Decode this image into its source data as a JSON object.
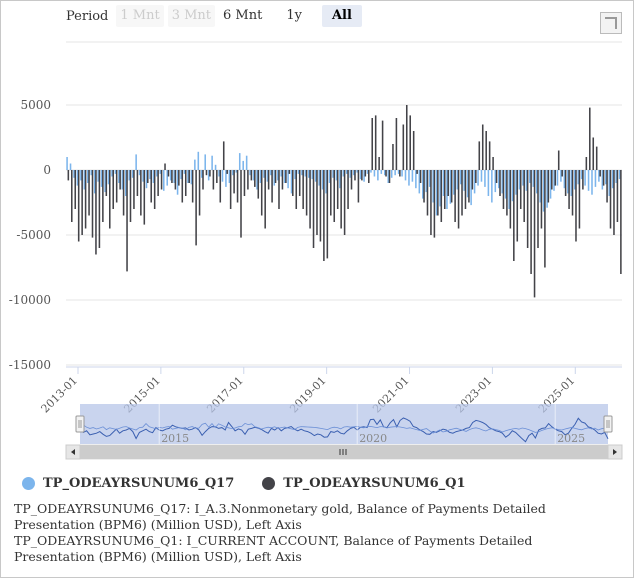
{
  "range_selector": {
    "label": "Period",
    "buttons": [
      "1 Mnt",
      "3 Mnt",
      "6 Mnt",
      "1y",
      "All"
    ],
    "selected": "All"
  },
  "colors": {
    "q17": "#7cb5ec",
    "q1": "#434348",
    "navigator_fill": "#b7c5e8",
    "navigator_line": "#3a5fb0"
  },
  "legend": [
    {
      "name": "TP_ODEAYRSUNUM6_Q17",
      "color": "#7cb5ec"
    },
    {
      "name": "TP_ODEAYRSUNUM6_Q1",
      "color": "#434348"
    }
  ],
  "notes": [
    "TP_ODEAYRSUNUM6_Q17: I_A.3.Nonmonetary gold, Balance of Payments Detailed Presentation (BPM6) (Million USD), Left Axis",
    "TP_ODEAYRSUNUM6_Q1: I_CURRENT ACCOUNT, Balance of Payments Detailed Presentation (BPM6) (Million USD), Left Axis"
  ],
  "chart_data": {
    "type": "bar",
    "title": "",
    "xlabel": "",
    "ylabel": "",
    "ylim": [
      -15000,
      5000
    ],
    "yticks": [
      5000,
      0,
      -5000,
      -10000,
      -15000
    ],
    "xticks": [
      "2013-01",
      "2015-01",
      "2017-01",
      "2019-01",
      "2021-01",
      "2023-01",
      "2025-01"
    ],
    "navigator_ticks": [
      "2015",
      "2020",
      "2025"
    ],
    "start": "2013-01",
    "series": [
      {
        "name": "TP_ODEAYRSUNUM6_Q17",
        "values": [
          1000,
          500,
          -600,
          -1200,
          -800,
          -1500,
          -1000,
          -400,
          -1800,
          -900,
          -1300,
          -1700,
          -1100,
          -500,
          -300,
          -1000,
          -1500,
          -2000,
          -800,
          -600,
          1200,
          -400,
          -900,
          -1400,
          -700,
          -1000,
          -500,
          -300,
          -1600,
          -1200,
          -800,
          -1000,
          -1900,
          -700,
          -300,
          -1000,
          -1100,
          800,
          1400,
          -600,
          1200,
          -800,
          1100,
          400,
          -500,
          -900,
          -1300,
          -1000,
          -400,
          -200,
          1300,
          700,
          1100,
          -400,
          -800,
          -1500,
          -1000,
          -600,
          -900,
          -400,
          -1200,
          -800,
          -500,
          -1000,
          -1400,
          -1800,
          -700,
          -300,
          -400,
          -500,
          -600,
          -700,
          -900,
          -1200,
          -1500,
          -1800,
          -1000,
          -600,
          -800,
          -1400,
          -500,
          -300,
          -600,
          -400,
          -200,
          -700,
          -900,
          -300,
          -200,
          -500,
          -800,
          -300,
          -400,
          -1000,
          -600,
          -400,
          -300,
          -500,
          -800,
          -1200,
          -900,
          -1400,
          -1800,
          -2200,
          -1700,
          -1300,
          -2500,
          -3500,
          -2800,
          -2000,
          -3000,
          -2600,
          -1900,
          -1500,
          -1100,
          -1600,
          -2100,
          -2700,
          -1800,
          -1200,
          -900,
          -1300,
          -2000,
          -2500,
          -1700,
          -1400,
          -1800,
          -2200,
          -3000,
          -2400,
          -1900,
          -1500,
          -1200,
          -1600,
          -1000,
          -1300,
          -1800,
          -2500,
          -3200,
          -2900,
          -2200,
          -1600,
          -1200,
          -900,
          -1400,
          -1800,
          -2000,
          -1500,
          -1100,
          -700,
          -1200,
          -1600,
          -1900,
          -1300,
          -900,
          -1500,
          -1100,
          -2000,
          -1400,
          -1000,
          -700
        ]
      },
      {
        "name": "TP_ODEAYRSUNUM6_Q1",
        "values": [
          -800,
          -4000,
          -3000,
          -5500,
          -5000,
          -4500,
          -3500,
          -5200,
          -6500,
          -6000,
          -4000,
          -2000,
          -4500,
          -3000,
          -2500,
          -1500,
          -3500,
          -7800,
          -4000,
          -3000,
          -2000,
          -3500,
          -4200,
          -1000,
          -2500,
          -3000,
          -2000,
          -1500,
          500,
          -500,
          -1000,
          -1500,
          -1200,
          -2500,
          -2000,
          -1000,
          -2500,
          -5800,
          -3500,
          -1500,
          -400,
          -500,
          -1500,
          -1000,
          -2500,
          2200,
          -300,
          -3000,
          -1800,
          -2500,
          -5200,
          -2000,
          -1500,
          -800,
          -1300,
          -2200,
          -3500,
          -4500,
          -1500,
          -2500,
          -1000,
          -3000,
          -1500,
          -1000,
          -300,
          -2000,
          -3000,
          -2000,
          -3000,
          -3500,
          -4500,
          -6000,
          -5000,
          -5500,
          -7000,
          -6800,
          -3500,
          -4000,
          -3000,
          -4500,
          -5000,
          -3000,
          -1500,
          -800,
          -2500,
          -800,
          -500,
          -1000,
          4000,
          4200,
          1000,
          3800,
          -500,
          -1000,
          2000,
          4000,
          -500,
          3500,
          5000,
          4200,
          3000,
          -300,
          -1000,
          -2500,
          -3500,
          -5000,
          -5200,
          -3500,
          -4000,
          -3000,
          -2000,
          -2500,
          -4000,
          -4500,
          -3500,
          -3000,
          -2500,
          -1500,
          -1000,
          2200,
          3500,
          3000,
          2200,
          1000,
          -1000,
          -2000,
          -3000,
          -3500,
          -4500,
          -7000,
          -5500,
          -3000,
          -4000,
          -6000,
          -8000,
          -9800,
          -6000,
          -4500,
          -7500,
          -2500,
          -1500,
          -1200,
          1500,
          -500,
          -2000,
          -3000,
          -3500,
          -5500,
          -4500,
          -1500,
          1000,
          4800,
          2500,
          1800,
          -500,
          -1200,
          -2500,
          -4500,
          -5000,
          -4000,
          -8000
        ]
      }
    ]
  }
}
